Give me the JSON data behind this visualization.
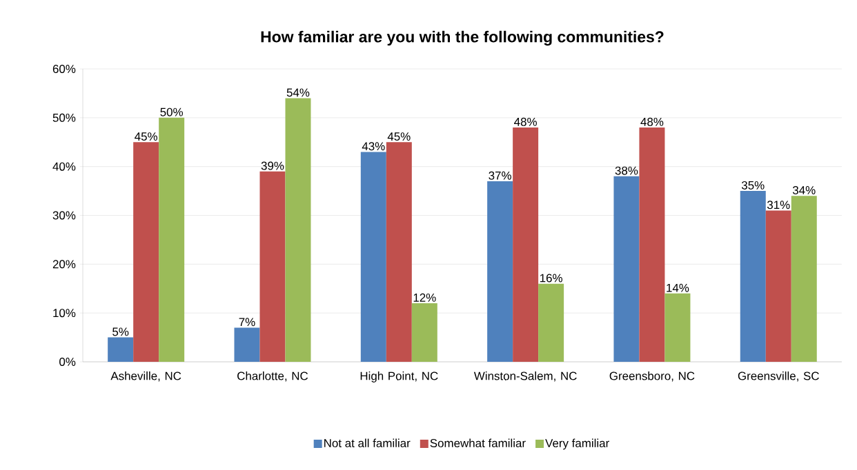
{
  "chart_data": {
    "type": "bar",
    "title": "How familiar are you with the following communities?",
    "categories": [
      "Asheville, NC",
      "Charlotte, NC",
      "High Point, NC",
      "Winston-Salem, NC",
      "Greensboro, NC",
      "Greensville, SC"
    ],
    "series": [
      {
        "name": "Not at all familiar",
        "color": "#4f81bd",
        "values": [
          5,
          7,
          43,
          37,
          38,
          35
        ],
        "value_labels": [
          "5%",
          "7%",
          "43%",
          "37%",
          "38%",
          "35%"
        ]
      },
      {
        "name": "Somewhat familiar",
        "color": "#c0504d",
        "values": [
          45,
          39,
          45,
          48,
          48,
          31
        ],
        "value_labels": [
          "45%",
          "39%",
          "45%",
          "48%",
          "48%",
          "31%"
        ]
      },
      {
        "name": "Very familiar",
        "color": "#9bbb59",
        "values": [
          50,
          54,
          12,
          16,
          14,
          34
        ],
        "value_labels": [
          "50%",
          "54%",
          "12%",
          "16%",
          "14%",
          "34%"
        ]
      }
    ],
    "ylim": [
      0,
      60
    ],
    "yticks": [
      {
        "value": 0,
        "label": "0%"
      },
      {
        "value": 10,
        "label": "10%"
      },
      {
        "value": 20,
        "label": "20%"
      },
      {
        "value": 30,
        "label": "30%"
      },
      {
        "value": 40,
        "label": "40%"
      },
      {
        "value": 50,
        "label": "50%"
      },
      {
        "value": 60,
        "label": "60%"
      }
    ],
    "grid": "y",
    "legend": "bottom"
  }
}
